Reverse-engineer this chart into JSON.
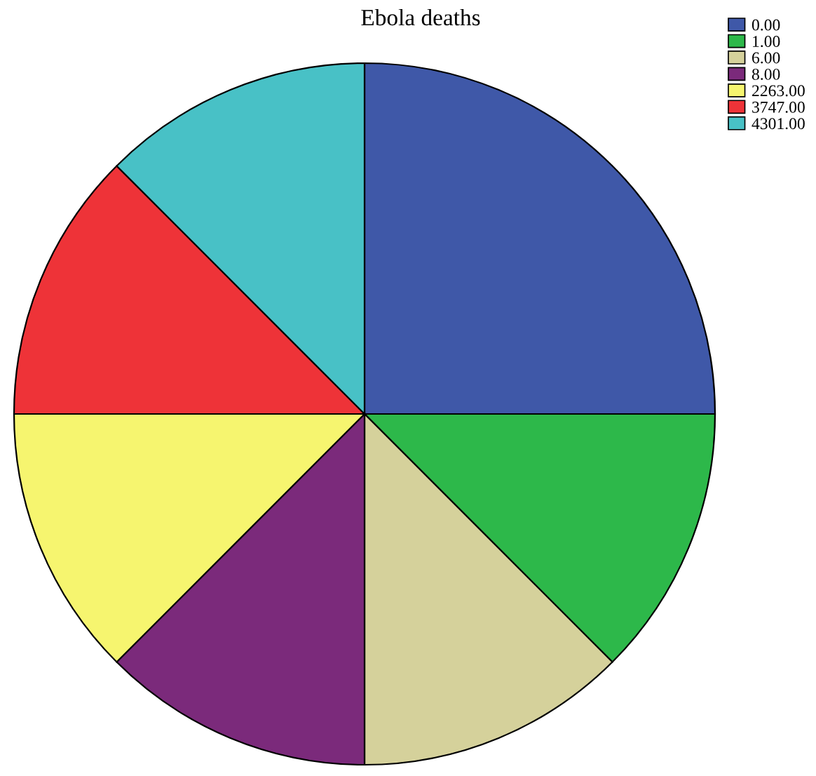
{
  "chart_data": {
    "type": "pie",
    "title": "Ebola deaths",
    "categories": [
      "0.00",
      "1.00",
      "6.00",
      "8.00",
      "2263.00",
      "3747.00",
      "4301.00"
    ],
    "values": [
      25,
      12.5,
      12.5,
      12.5,
      12.5,
      12.5,
      12.5
    ],
    "colors": [
      "#3f58a8",
      "#2db84a",
      "#d5d19b",
      "#7b2a7b",
      "#f6f56f",
      "#ee3338",
      "#48c1c6"
    ],
    "legend": "top right"
  }
}
